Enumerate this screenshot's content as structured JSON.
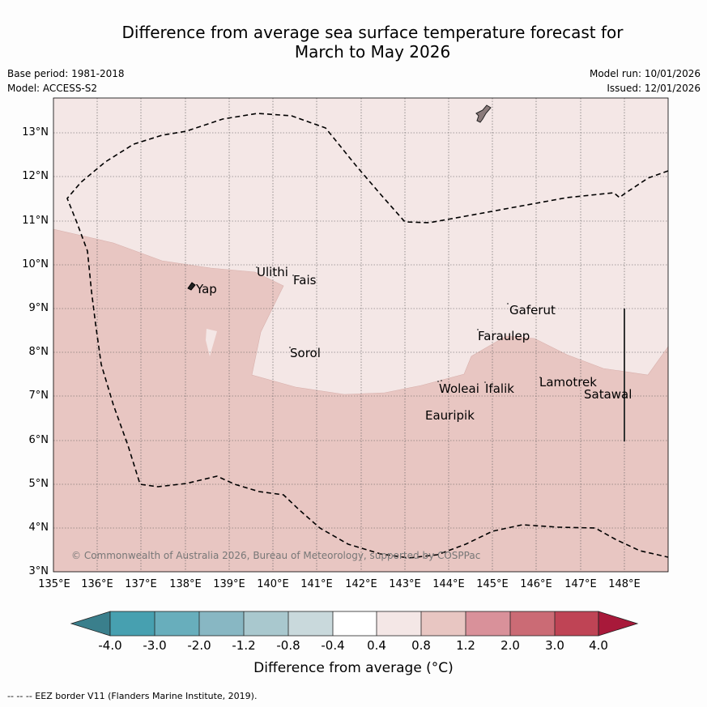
{
  "title": {
    "line1": "Difference from average sea surface temperature forecast for",
    "line2": "March to May 2026"
  },
  "meta": {
    "base_period": "Base period: 1981-2018",
    "model": "Model: ACCESS-S2",
    "model_run": "Model run: 10/01/2026",
    "issued": "Issued: 12/01/2026"
  },
  "map": {
    "lon_labels": [
      "135°E",
      "136°E",
      "137°E",
      "138°E",
      "139°E",
      "140°E",
      "141°E",
      "142°E",
      "143°E",
      "144°E",
      "145°E",
      "146°E",
      "147°E",
      "148°E"
    ],
    "lat_labels": [
      "13°N",
      "12°N",
      "11°N",
      "10°N",
      "9°N",
      "8°N",
      "7°N",
      "6°N",
      "5°N",
      "4°N",
      "3°N"
    ],
    "places": {
      "ulithi": "Ulithi",
      "fais": "Fais",
      "yap": "Yap",
      "gaferut": "Gaferut",
      "faraulep": "Faraulep",
      "sorol": "Sorol",
      "woleai": "Woleai",
      "ifalik": "Ifalik",
      "lamotrek": "Lamotrek",
      "satawal": "Satawal",
      "eauripik": "Eauripik"
    },
    "copyright": "© Commonwealth of Australia 2026, Bureau of Meteorology, supported by COSPPac",
    "colors": {
      "band_0_4_to_0_8": "#f4e7e6",
      "band_0_8_to_1_2": "#e8c6c2",
      "land": "#8a7a7a"
    }
  },
  "colorbar": {
    "tick_labels": [
      "-4.0",
      "-3.0",
      "-2.0",
      "-1.2",
      "-0.8",
      "-0.4",
      "0.4",
      "0.8",
      "1.2",
      "2.0",
      "3.0",
      "4.0"
    ],
    "colors": [
      "#3a7f8c",
      "#47a0b0",
      "#68aebc",
      "#88b7c3",
      "#a9c8ce",
      "#c9d9dc",
      "#ffffff",
      "#f4e7e6",
      "#e8c6c2",
      "#d9919a",
      "#cb6b75",
      "#bf4455",
      "#a8193a"
    ],
    "title": "Difference from average (°C)"
  },
  "footnote": "--  --  -- EEZ border V11 (Flanders Marine Institute, 2019)."
}
